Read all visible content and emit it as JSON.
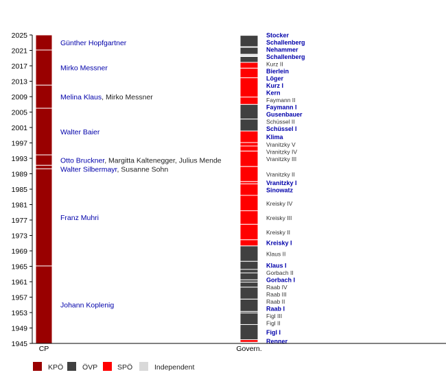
{
  "chart_data": {
    "type": "timeline",
    "y_axis": {
      "range": [
        1945,
        2025
      ],
      "ticks": [
        1945,
        1949,
        1953,
        1957,
        1961,
        1965,
        1969,
        1973,
        1977,
        1981,
        1985,
        1989,
        1993,
        1997,
        2001,
        2005,
        2009,
        2013,
        2017,
        2021,
        2025
      ]
    },
    "columns": [
      "CP",
      "Govern."
    ],
    "party_colors": {
      "KPÖ": "#990000",
      "ÖVP": "#404040",
      "SPÖ": "#ff0000",
      "Independent": "#d9d9d9"
    },
    "legend": [
      "KPÖ",
      "ÖVP",
      "SPÖ",
      "Independent"
    ],
    "cp_chairs": [
      {
        "start": 1945.0,
        "end": 1965.1,
        "party": "KPÖ",
        "linked": "Johann Koplenig",
        "rest": ""
      },
      {
        "start": 1965.1,
        "end": 1990.3,
        "party": "KPÖ",
        "linked": "Franz Muhri",
        "rest": ""
      },
      {
        "start": 1990.3,
        "end": 1991.2,
        "party": "KPÖ",
        "linked": "Walter Silbermayr",
        "rest": ", Susanne Sohn"
      },
      {
        "start": 1991.2,
        "end": 1993.9,
        "party": "KPÖ",
        "linked": "Otto Bruckner",
        "rest": ", Margitta Kaltenegger, Julius Mende"
      },
      {
        "start": 1993.9,
        "end": 2006.0,
        "party": "KPÖ",
        "linked": "Walter Baier",
        "rest": ""
      },
      {
        "start": 2006.0,
        "end": 2012.0,
        "party": "KPÖ",
        "linked": "Melina Klaus",
        "rest": ", Mirko Messner"
      },
      {
        "start": 2012.0,
        "end": 2021.1,
        "party": "KPÖ",
        "linked": "Mirko Messner",
        "rest": ""
      },
      {
        "start": 2021.1,
        "end": 2025.0,
        "party": "KPÖ",
        "linked": "Günther Hopfgartner",
        "rest": ""
      }
    ],
    "governments": [
      {
        "name": "Renner",
        "start": 1945.3,
        "end": 1945.97,
        "party": "SPÖ",
        "linked": true
      },
      {
        "name": "Figl I",
        "start": 1945.97,
        "end": 1949.9,
        "party": "ÖVP",
        "linked": true
      },
      {
        "name": "Figl II",
        "start": 1949.9,
        "end": 1952.9,
        "party": "ÖVP",
        "linked": false
      },
      {
        "name": "Figl III",
        "start": 1952.9,
        "end": 1953.3,
        "party": "ÖVP",
        "linked": false
      },
      {
        "name": "Raab I",
        "start": 1953.3,
        "end": 1956.5,
        "party": "ÖVP",
        "linked": true
      },
      {
        "name": "Raab II",
        "start": 1956.5,
        "end": 1959.6,
        "party": "ÖVP",
        "linked": false
      },
      {
        "name": "Raab III",
        "start": 1959.6,
        "end": 1960.9,
        "party": "ÖVP",
        "linked": false
      },
      {
        "name": "Raab IV",
        "start": 1960.9,
        "end": 1961.5,
        "party": "ÖVP",
        "linked": false
      },
      {
        "name": "Gorbach I",
        "start": 1961.5,
        "end": 1963.3,
        "party": "ÖVP",
        "linked": true
      },
      {
        "name": "Gorbach II",
        "start": 1963.3,
        "end": 1964.2,
        "party": "ÖVP",
        "linked": false
      },
      {
        "name": "Klaus I",
        "start": 1964.2,
        "end": 1966.3,
        "party": "ÖVP",
        "linked": true
      },
      {
        "name": "Klaus II",
        "start": 1966.3,
        "end": 1970.3,
        "party": "ÖVP",
        "linked": false
      },
      {
        "name": "Kreisky I",
        "start": 1970.3,
        "end": 1971.9,
        "party": "SPÖ",
        "linked": true
      },
      {
        "name": "Kreisky II",
        "start": 1971.9,
        "end": 1975.9,
        "party": "SPÖ",
        "linked": false
      },
      {
        "name": "Kreisky III",
        "start": 1975.9,
        "end": 1979.4,
        "party": "SPÖ",
        "linked": false
      },
      {
        "name": "Kreisky IV",
        "start": 1979.4,
        "end": 1983.4,
        "party": "SPÖ",
        "linked": false
      },
      {
        "name": "Sinowatz",
        "start": 1983.4,
        "end": 1986.4,
        "party": "SPÖ",
        "linked": true
      },
      {
        "name": "Vranitzky I",
        "start": 1986.4,
        "end": 1987.0,
        "party": "SPÖ",
        "linked": true
      },
      {
        "name": "Vranitzky II",
        "start": 1987.0,
        "end": 1990.9,
        "party": "SPÖ",
        "linked": false
      },
      {
        "name": "Vranitzky III",
        "start": 1990.9,
        "end": 1994.9,
        "party": "SPÖ",
        "linked": false
      },
      {
        "name": "Vranitzky IV",
        "start": 1994.9,
        "end": 1996.2,
        "party": "SPÖ",
        "linked": false
      },
      {
        "name": "Vranitzky V",
        "start": 1996.2,
        "end": 1997.1,
        "party": "SPÖ",
        "linked": false
      },
      {
        "name": "Klima",
        "start": 1997.1,
        "end": 2000.1,
        "party": "SPÖ",
        "linked": true
      },
      {
        "name": "Schüssel I",
        "start": 2000.1,
        "end": 2003.2,
        "party": "ÖVP",
        "linked": true
      },
      {
        "name": "Schüssel II",
        "start": 2003.2,
        "end": 2007.0,
        "party": "ÖVP",
        "linked": false
      },
      {
        "name": "Gusenbauer",
        "start": 2007.0,
        "end": 2008.9,
        "party": "SPÖ",
        "linked": true
      },
      {
        "name": "Faymann I",
        "start": 2008.9,
        "end": 2013.9,
        "party": "SPÖ",
        "linked": true
      },
      {
        "name": "Faymann II",
        "start": 2013.9,
        "end": 2016.4,
        "party": "SPÖ",
        "linked": false
      },
      {
        "name": "Kern",
        "start": 2016.4,
        "end": 2017.9,
        "party": "SPÖ",
        "linked": true
      },
      {
        "name": "Kurz I",
        "start": 2017.9,
        "end": 2019.4,
        "party": "ÖVP",
        "linked": true
      },
      {
        "name": "Löger",
        "start": 2019.4,
        "end": 2019.5,
        "party": "Independent",
        "linked": true
      },
      {
        "name": "Bierlein",
        "start": 2019.5,
        "end": 2020.0,
        "party": "Independent",
        "linked": true
      },
      {
        "name": "Kurz II",
        "start": 2020.0,
        "end": 2021.8,
        "party": "ÖVP",
        "linked": false
      },
      {
        "name": "Schallenberg",
        "start": 2021.8,
        "end": 2021.95,
        "party": "ÖVP",
        "linked": true
      },
      {
        "name": "Nehammer",
        "start": 2021.95,
        "end": 2024.9,
        "party": "ÖVP",
        "linked": true
      },
      {
        "name": "Schallenberg",
        "start": 2024.9,
        "end": 2025.2,
        "party": "ÖVP",
        "linked": true
      },
      {
        "name": "Stocker",
        "start": 2025.2,
        "end": 2025.3,
        "party": "ÖVP",
        "linked": true
      }
    ]
  }
}
